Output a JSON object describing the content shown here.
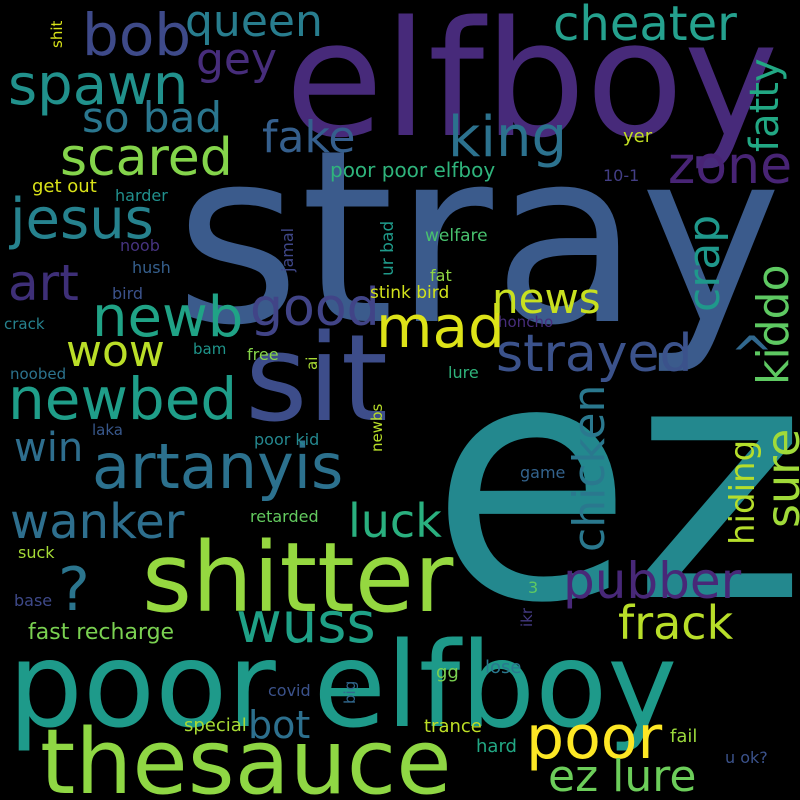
{
  "background": "#000000",
  "words": [
    {
      "text": "stray",
      "color": "#3b5b8c"
    },
    {
      "text": "ez",
      "color": "#23888e"
    },
    {
      "text": "elfboy",
      "color": "#472a7a"
    },
    {
      "text": "poor elfboy",
      "color": "#1e9a8a"
    },
    {
      "text": "shitter",
      "color": "#95d840"
    },
    {
      "text": "thesauce",
      "color": "#8fd744"
    },
    {
      "text": "sit",
      "color": "#3d4d8a"
    },
    {
      "text": "artanyis",
      "color": "#2c718e"
    },
    {
      "text": "bob",
      "color": "#3e4a89"
    },
    {
      "text": "queen",
      "color": "#287d8e"
    },
    {
      "text": "cheater",
      "color": "#25a18e"
    },
    {
      "text": "spawn",
      "color": "#21918c"
    },
    {
      "text": "gey",
      "color": "#472d7b"
    },
    {
      "text": "so bad",
      "color": "#2a768e"
    },
    {
      "text": "scared",
      "color": "#84d44b"
    },
    {
      "text": "fake",
      "color": "#355f8d"
    },
    {
      "text": "king",
      "color": "#2c728e"
    },
    {
      "text": "zone",
      "color": "#482475"
    },
    {
      "text": "fatty",
      "color": "#22a884"
    },
    {
      "text": "jesus",
      "color": "#26828e"
    },
    {
      "text": "crap",
      "color": "#1f988b"
    },
    {
      "text": "art",
      "color": "#3e2f78"
    },
    {
      "text": "newb",
      "color": "#20a386"
    },
    {
      "text": "good",
      "color": "#414487"
    },
    {
      "text": "mad",
      "color": "#dde318"
    },
    {
      "text": "news",
      "color": "#c8e020"
    },
    {
      "text": "kiddo",
      "color": "#5ec962"
    },
    {
      "text": "wow",
      "color": "#bade28"
    },
    {
      "text": "strayed",
      "color": "#3b528b"
    },
    {
      "text": "^",
      "color": "#31688e"
    },
    {
      "text": "newbed",
      "color": "#1f9e89"
    },
    {
      "text": "hiding",
      "color": "#b5de2b"
    },
    {
      "text": "sure",
      "color": "#a0da39"
    },
    {
      "text": "win",
      "color": "#2e6e8e"
    },
    {
      "text": "chicken",
      "color": "#2a788e"
    },
    {
      "text": "wanker",
      "color": "#2e6f8e"
    },
    {
      "text": "luck",
      "color": "#2ab07f"
    },
    {
      "text": "?",
      "color": "#2b758e"
    },
    {
      "text": "pubber",
      "color": "#482878"
    },
    {
      "text": "wuss",
      "color": "#1fa187"
    },
    {
      "text": "frack",
      "color": "#b8de29"
    },
    {
      "text": "bot",
      "color": "#2d708e"
    },
    {
      "text": "poor",
      "color": "#fde725"
    },
    {
      "text": "ez lure",
      "color": "#6ccd5a"
    },
    {
      "text": "fast recharge",
      "color": "#7ad151"
    },
    {
      "text": "poor poor elfboy",
      "color": "#2fb47c"
    },
    {
      "text": "get out",
      "color": "#dae319"
    },
    {
      "text": "harder",
      "color": "#21908d"
    },
    {
      "text": "10-1",
      "color": "#433e85"
    },
    {
      "text": "yer",
      "color": "#c2df23"
    },
    {
      "text": "shit",
      "color": "#d8e219"
    },
    {
      "text": "jamal",
      "color": "#3f4788"
    },
    {
      "text": "ur bad",
      "color": "#1f9a8a"
    },
    {
      "text": "welfare",
      "color": "#48c16e"
    },
    {
      "text": "noob",
      "color": "#46337f"
    },
    {
      "text": "hush",
      "color": "#355f8d"
    },
    {
      "text": "fat",
      "color": "#90d743"
    },
    {
      "text": "stink bird",
      "color": "#d2e21b"
    },
    {
      "text": "bird",
      "color": "#3b528b"
    },
    {
      "text": "crack",
      "color": "#26828e"
    },
    {
      "text": "honcho",
      "color": "#472d7b"
    },
    {
      "text": "bam",
      "color": "#1f958b"
    },
    {
      "text": "free",
      "color": "#86d549"
    },
    {
      "text": "ai",
      "color": "#a8db34"
    },
    {
      "text": "noobed",
      "color": "#2c738e"
    },
    {
      "text": "lure",
      "color": "#2fb47c"
    },
    {
      "text": "laka",
      "color": "#38588c"
    },
    {
      "text": "poor kid",
      "color": "#24878e"
    },
    {
      "text": "newbs",
      "color": "#b8de29"
    },
    {
      "text": "game",
      "color": "#33638d"
    },
    {
      "text": "retarded",
      "color": "#63cb5f"
    },
    {
      "text": "suck",
      "color": "#a5db36"
    },
    {
      "text": "base",
      "color": "#3e4989"
    },
    {
      "text": "3",
      "color": "#5ec962"
    },
    {
      "text": "ikr",
      "color": "#443a83"
    },
    {
      "text": "gg",
      "color": "#7ad151"
    },
    {
      "text": "lose",
      "color": "#2a788e"
    },
    {
      "text": "covid",
      "color": "#3b528b"
    },
    {
      "text": "big",
      "color": "#31688e"
    },
    {
      "text": "special",
      "color": "#a8db34"
    },
    {
      "text": "trance",
      "color": "#bddf26"
    },
    {
      "text": "fail",
      "color": "#9bd93c"
    },
    {
      "text": "hard",
      "color": "#22a884"
    },
    {
      "text": "u ok?",
      "color": "#3b528b"
    }
  ]
}
